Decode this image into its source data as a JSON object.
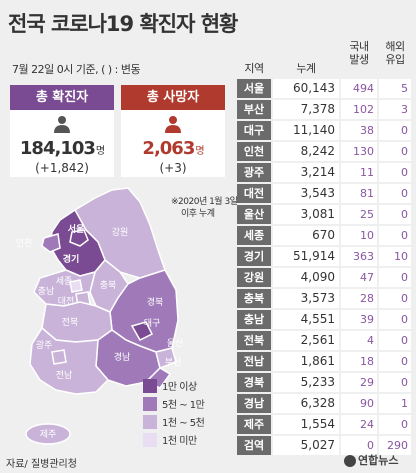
{
  "title": "전국 코로나19 확진자 현황",
  "subtitle": "7월 22일 0시 기준, ( ) : 변동",
  "summary": {
    "confirmed": {
      "label": "총 확진자",
      "value": "184,103",
      "unit": "명",
      "delta": "(+1,842)",
      "color": "#7a4a92"
    },
    "deaths": {
      "label": "총 사망자",
      "value": "2,063",
      "unit": "명",
      "delta": "(+3)",
      "color": "#b03a2e"
    }
  },
  "map_note": [
    "※2020년 1월 3일",
    "이후 누계"
  ],
  "map_labels": [
    "서울",
    "인천",
    "경기",
    "강원",
    "세종",
    "충북",
    "대전",
    "충남",
    "경북",
    "대구",
    "전북",
    "울산",
    "부산",
    "경남",
    "광주",
    "전남",
    "제주"
  ],
  "legend": [
    {
      "label": "1만 이상",
      "color": "#7a4a92"
    },
    {
      "label": "5천 ~ 1만",
      "color": "#a07ab8"
    },
    {
      "label": "1천 ~ 5천",
      "color": "#c9b3d9"
    },
    {
      "label": "1천 미만",
      "color": "#e9ddf1"
    }
  ],
  "source": "자료/ 질병관리청",
  "logo": "연합뉴스",
  "chart_data": {
    "type": "table",
    "columns": [
      "지역",
      "누계",
      [
        "국내",
        "발생"
      ],
      [
        "해외",
        "유입"
      ]
    ],
    "rows": [
      {
        "region": "서울",
        "total": "60,143",
        "domestic": "494",
        "imported": "5"
      },
      {
        "region": "부산",
        "total": "7,378",
        "domestic": "102",
        "imported": "3"
      },
      {
        "region": "대구",
        "total": "11,140",
        "domestic": "38",
        "imported": "0"
      },
      {
        "region": "인천",
        "total": "8,242",
        "domestic": "130",
        "imported": "0"
      },
      {
        "region": "광주",
        "total": "3,214",
        "domestic": "11",
        "imported": "0"
      },
      {
        "region": "대전",
        "total": "3,543",
        "domestic": "81",
        "imported": "0"
      },
      {
        "region": "울산",
        "total": "3,081",
        "domestic": "25",
        "imported": "0"
      },
      {
        "region": "세종",
        "total": "670",
        "domestic": "10",
        "imported": "0"
      },
      {
        "region": "경기",
        "total": "51,914",
        "domestic": "363",
        "imported": "10"
      },
      {
        "region": "강원",
        "total": "4,090",
        "domestic": "47",
        "imported": "0"
      },
      {
        "region": "충북",
        "total": "3,573",
        "domestic": "28",
        "imported": "0"
      },
      {
        "region": "충남",
        "total": "4,551",
        "domestic": "39",
        "imported": "0"
      },
      {
        "region": "전북",
        "total": "2,561",
        "domestic": "4",
        "imported": "0"
      },
      {
        "region": "전남",
        "total": "1,861",
        "domestic": "18",
        "imported": "0"
      },
      {
        "region": "경북",
        "total": "5,233",
        "domestic": "29",
        "imported": "0"
      },
      {
        "region": "경남",
        "total": "6,328",
        "domestic": "90",
        "imported": "1"
      },
      {
        "region": "제주",
        "total": "1,554",
        "domestic": "24",
        "imported": "0"
      },
      {
        "region": "검역",
        "total": "5,027",
        "domestic": "0",
        "imported": "290"
      }
    ]
  }
}
